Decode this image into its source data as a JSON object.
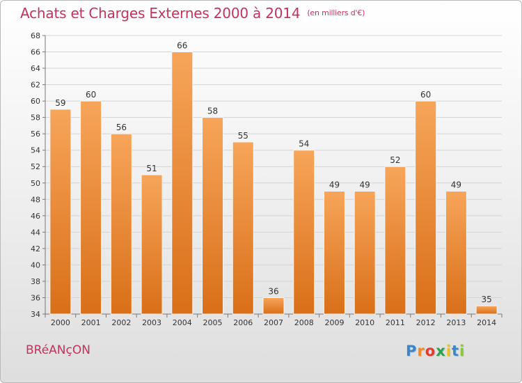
{
  "header": {
    "title": "Achats et Charges Externes 2000 à 2014",
    "subtitle": "(en milliers d'€)"
  },
  "footer": {
    "commune": "BRéANçON",
    "logo_letters": [
      "P",
      "r",
      "o",
      "x",
      "i",
      "t",
      "i"
    ],
    "logo_colors": [
      "#3a86c8",
      "#f28b1e",
      "#e33b2e",
      "#2ba24a",
      "#f4c20d",
      "#3a86c8",
      "#8cc63e"
    ]
  },
  "chart_data": {
    "type": "bar",
    "categories": [
      "2000",
      "2001",
      "2002",
      "2003",
      "2004",
      "2005",
      "2006",
      "2007",
      "2008",
      "2009",
      "2010",
      "2011",
      "2012",
      "2013",
      "2014"
    ],
    "values": [
      59,
      60,
      56,
      51,
      66,
      58,
      55,
      36,
      54,
      49,
      49,
      52,
      60,
      49,
      35
    ],
    "ylim": [
      34,
      68
    ],
    "yticks": [
      34,
      36,
      38,
      40,
      42,
      44,
      46,
      48,
      50,
      52,
      54,
      56,
      58,
      60,
      62,
      64,
      66,
      68
    ],
    "grid": true,
    "bar_color_top": "#f7a55a",
    "bar_color_bottom": "#d96f18"
  }
}
